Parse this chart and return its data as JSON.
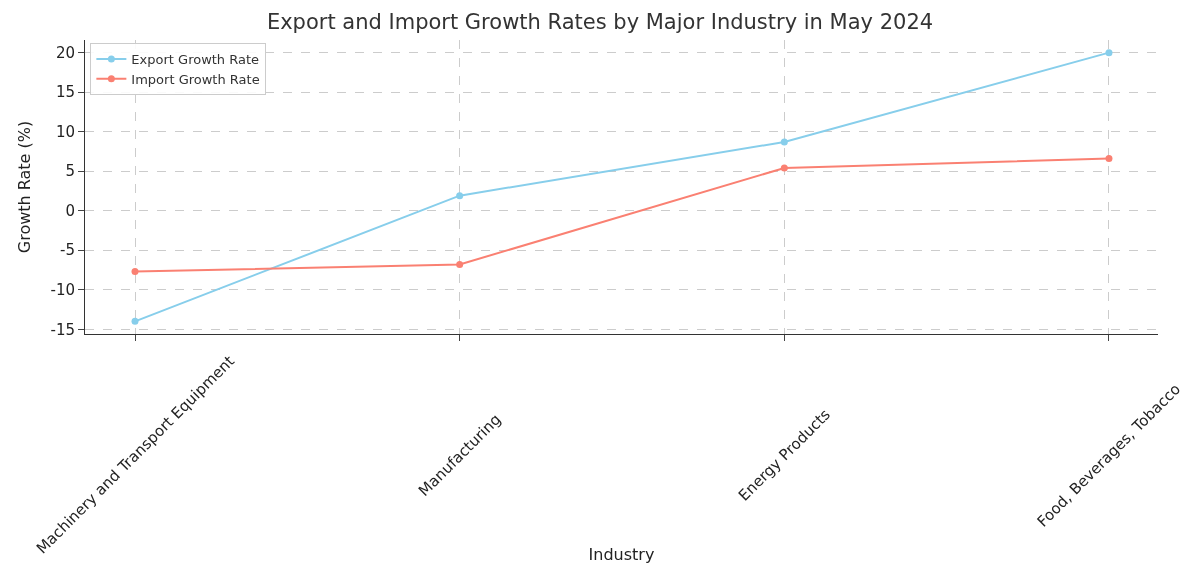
{
  "chart_data": {
    "type": "line",
    "title": "Export and Import Growth Rates by Major Industry in May 2024",
    "xlabel": "Industry",
    "ylabel": "Growth Rate (%)",
    "categories": [
      "Machinery and Transport Equipment",
      "Manufacturing",
      "Energy Products",
      "Food, Beverages, Tobacco"
    ],
    "series": [
      {
        "name": "Export Growth Rate",
        "color": "#87ceeb",
        "values": [
          -14.0,
          1.9,
          8.7,
          20.0
        ]
      },
      {
        "name": "Import Growth Rate",
        "color": "#fa8072",
        "values": [
          -7.7,
          -6.8,
          5.4,
          6.6
        ]
      }
    ],
    "ylim": [
      -15.6,
      21.6
    ],
    "yticks": [
      -15,
      -10,
      -5,
      0,
      5,
      10,
      15,
      20
    ],
    "grid": true,
    "legend": "top left",
    "marker": "circle",
    "line_style": "solid"
  }
}
